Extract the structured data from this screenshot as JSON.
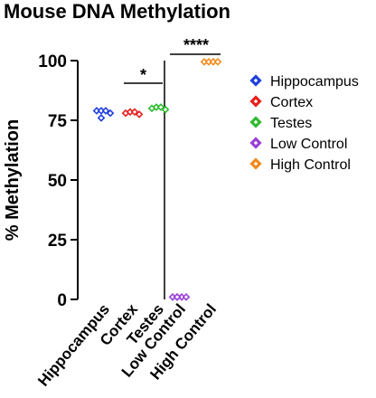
{
  "chart_data": {
    "type": "scatter",
    "title": "Mouse DNA Methylation",
    "ylabel": "% Methylation",
    "xlabel": "",
    "ylim": [
      0,
      100
    ],
    "yticks": [
      0,
      25,
      50,
      75,
      100
    ],
    "grid": false,
    "legend_position": "right",
    "categories": [
      "Hippocampus",
      "Cortex",
      "Testes",
      "Low Control",
      "High Control"
    ],
    "series": [
      {
        "name": "Hippocampus",
        "color": "#1f3fdd",
        "values": [
          79,
          79,
          79,
          78,
          76
        ]
      },
      {
        "name": "Cortex",
        "color": "#e8201e",
        "values": [
          78,
          78.5,
          78.5,
          77.5
        ]
      },
      {
        "name": "Testes",
        "color": "#2fbb2f",
        "values": [
          80,
          80.5,
          80.5,
          79.5
        ]
      },
      {
        "name": "Low Control",
        "color": "#9a3fd8",
        "values": [
          1,
          1,
          1,
          1,
          1
        ]
      },
      {
        "name": "High Control",
        "color": "#f28a1c",
        "values": [
          99.5,
          99.5,
          99.5,
          99.5
        ]
      }
    ],
    "annotations": [
      {
        "text": "*",
        "between": [
          "Cortex",
          "Testes"
        ]
      },
      {
        "text": "****",
        "between": [
          "Low Control",
          "High Control"
        ]
      }
    ],
    "divider_after": "Testes"
  }
}
